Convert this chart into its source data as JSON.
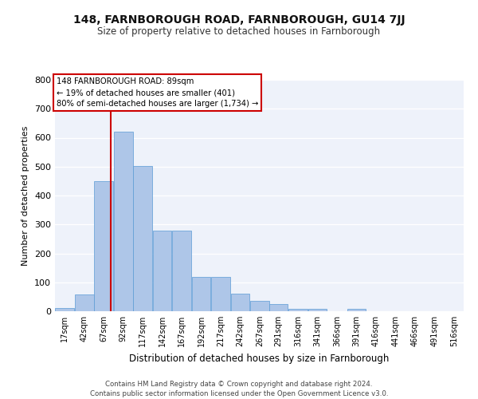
{
  "title1": "148, FARNBOROUGH ROAD, FARNBOROUGH, GU14 7JJ",
  "title2": "Size of property relative to detached houses in Farnborough",
  "xlabel": "Distribution of detached houses by size in Farnborough",
  "ylabel": "Number of detached properties",
  "bar_color": "#aec6e8",
  "bar_edge_color": "#5b9bd5",
  "background_color": "#eef2fa",
  "grid_color": "#ffffff",
  "annotation_line_color": "#cc0000",
  "annotation_box_color": "#cc0000",
  "annotation_text": "148 FARNBOROUGH ROAD: 89sqm\n← 19% of detached houses are smaller (401)\n80% of semi-detached houses are larger (1,734) →",
  "categories": [
    "17sqm",
    "42sqm",
    "67sqm",
    "92sqm",
    "117sqm",
    "142sqm",
    "167sqm",
    "192sqm",
    "217sqm",
    "242sqm",
    "267sqm",
    "291sqm",
    "316sqm",
    "341sqm",
    "366sqm",
    "391sqm",
    "416sqm",
    "441sqm",
    "466sqm",
    "491sqm",
    "516sqm"
  ],
  "bar_values": [
    10,
    57,
    450,
    622,
    503,
    280,
    280,
    118,
    118,
    62,
    37,
    25,
    8,
    8,
    0,
    8,
    0,
    0,
    0,
    0,
    0
  ],
  "bin_starts": [
    17,
    42,
    67,
    92,
    117,
    142,
    167,
    192,
    217,
    242,
    267,
    291,
    316,
    341,
    366,
    391,
    416,
    441,
    466,
    491,
    516
  ],
  "bin_width": 25,
  "ylim": [
    0,
    800
  ],
  "yticks": [
    0,
    100,
    200,
    300,
    400,
    500,
    600,
    700,
    800
  ],
  "footer_text": "Contains HM Land Registry data © Crown copyright and database right 2024.\nContains public sector information licensed under the Open Government Licence v3.0.",
  "vline_x": 89,
  "fig_width": 6.0,
  "fig_height": 5.0,
  "dpi": 100
}
